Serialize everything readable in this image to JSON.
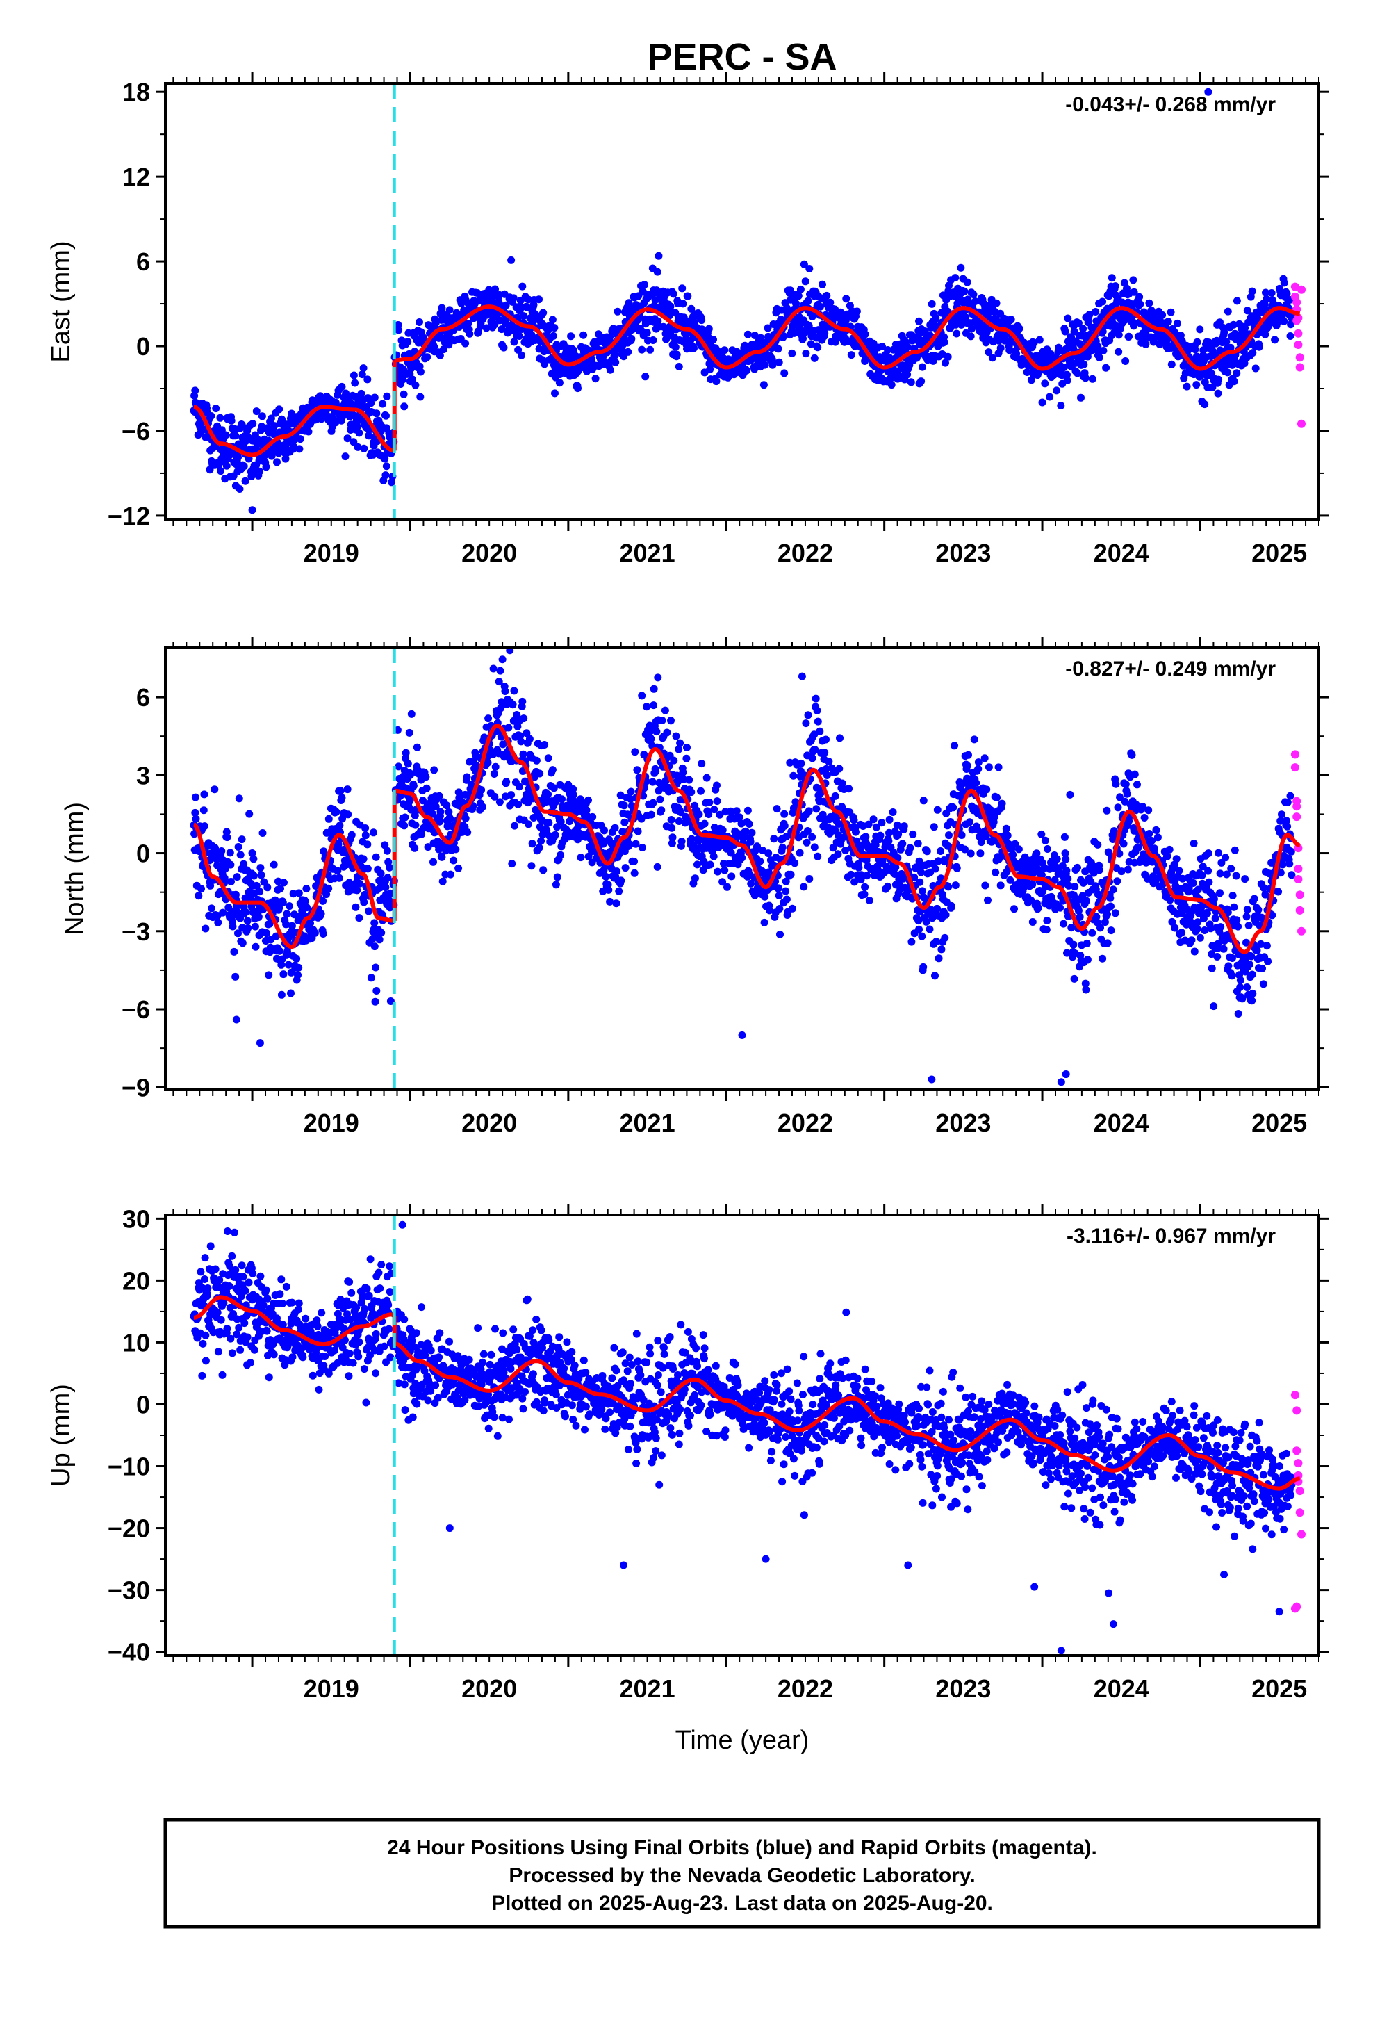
{
  "title": "PERC - SA",
  "xlabel": "Time (year)",
  "footer": {
    "line1": "24 Hour Positions Using Final Orbits (blue) and Rapid Orbits (magenta).",
    "line2": "Processed by the Nevada Geodetic Laboratory.",
    "line3": "Plotted on 2025-Aug-23. Last data on 2025-Aug-20."
  },
  "colors": {
    "final_orbits": "#0000ff",
    "rapid_orbits": "#ff22ff",
    "model_fit": "#ff0000",
    "offset_line": "#22e0e8"
  },
  "chart_data": [
    {
      "type": "scatter",
      "component": "east",
      "ylabel": "East (mm)",
      "rate_label": "-0.043+/- 0.268 mm/yr",
      "xlim": [
        2018.45,
        2025.75
      ],
      "ylim": [
        -12.3,
        18.6
      ],
      "yticks": [
        18,
        12,
        6,
        0,
        -6,
        -12
      ],
      "ytick_labels": [
        "18",
        "12",
        "6",
        "0",
        "−6",
        "−12"
      ],
      "xticks": [
        2019,
        2020,
        2021,
        2022,
        2023,
        2024,
        2025
      ],
      "offset_epoch": 2019.9,
      "model": {
        "offset": -1.3,
        "jump": 5.8,
        "rate": -0.043,
        "annual_amplitude": 2.1,
        "annual_phase_peak": 0.52,
        "step_pre_start": 2018.63,
        "breakpoints": [
          [
            2018.63,
            -4.3
          ],
          [
            2018.8,
            -6.9
          ],
          [
            2019.0,
            -7.7
          ],
          [
            2019.2,
            -6.4
          ],
          [
            2019.45,
            -4.3
          ],
          [
            2019.65,
            -4.5
          ],
          [
            2019.9,
            -7.4
          ]
        ],
        "post_points": [
          [
            2019.9,
            -1.0
          ],
          [
            2020.0,
            -0.9
          ],
          [
            2020.2,
            1.2
          ],
          [
            2020.5,
            2.8
          ],
          [
            2020.75,
            1.4
          ],
          [
            2021.0,
            -1.3
          ],
          [
            2021.2,
            -0.4
          ],
          [
            2021.5,
            2.6
          ],
          [
            2021.75,
            1.2
          ],
          [
            2022.0,
            -1.5
          ],
          [
            2022.2,
            -0.4
          ],
          [
            2022.5,
            2.7
          ],
          [
            2022.75,
            1.2
          ],
          [
            2023.0,
            -1.5
          ],
          [
            2023.2,
            -0.4
          ],
          [
            2023.5,
            2.7
          ],
          [
            2023.75,
            1.2
          ],
          [
            2024.0,
            -1.6
          ],
          [
            2024.2,
            -0.5
          ],
          [
            2024.5,
            2.7
          ],
          [
            2024.75,
            1.2
          ],
          [
            2025.0,
            -1.6
          ],
          [
            2025.2,
            -0.4
          ],
          [
            2025.5,
            2.7
          ],
          [
            2025.63,
            2.3
          ]
        ],
        "scatter_sd": 1.3
      },
      "rapid_points": [
        [
          2025.6,
          4.2
        ],
        [
          2025.6,
          3.5
        ],
        [
          2025.61,
          2.6
        ],
        [
          2025.61,
          1.8
        ],
        [
          2025.62,
          0.9
        ],
        [
          2025.62,
          0.1
        ],
        [
          2025.63,
          -0.8
        ],
        [
          2025.63,
          -1.5
        ],
        [
          2025.64,
          4.0
        ],
        [
          2025.64,
          -5.5
        ],
        [
          2025.61,
          3.1
        ],
        [
          2025.62,
          2.0
        ]
      ],
      "outliers": [
        [
          2025.05,
          18.0
        ],
        [
          2019.0,
          -11.6
        ],
        [
          2019.85,
          -8.5
        ]
      ]
    },
    {
      "type": "scatter",
      "component": "north",
      "ylabel": "North (mm)",
      "rate_label": "-0.827+/- 0.249 mm/yr",
      "xlim": [
        2018.45,
        2025.75
      ],
      "ylim": [
        -9.1,
        7.9
      ],
      "yticks": [
        6,
        3,
        0,
        -3,
        -6,
        -9
      ],
      "ytick_labels": [
        "6",
        "3",
        "0",
        "−3",
        "−6",
        "−9"
      ],
      "xticks": [
        2019,
        2020,
        2021,
        2022,
        2023,
        2024,
        2025
      ],
      "offset_epoch": 2019.9,
      "model": {
        "breakpoints": [
          [
            2018.63,
            1.1
          ],
          [
            2018.75,
            -0.9
          ],
          [
            2018.9,
            -1.9
          ],
          [
            2019.05,
            -1.9
          ],
          [
            2019.25,
            -3.6
          ],
          [
            2019.35,
            -2.5
          ],
          [
            2019.55,
            0.7
          ],
          [
            2019.7,
            -0.8
          ],
          [
            2019.8,
            -2.5
          ],
          [
            2019.9,
            -2.6
          ]
        ],
        "post_points": [
          [
            2019.9,
            2.4
          ],
          [
            2020.0,
            2.3
          ],
          [
            2020.1,
            1.4
          ],
          [
            2020.25,
            0.4
          ],
          [
            2020.35,
            1.8
          ],
          [
            2020.55,
            4.9
          ],
          [
            2020.7,
            3.5
          ],
          [
            2020.85,
            1.6
          ],
          [
            2021.0,
            1.5
          ],
          [
            2021.1,
            1.2
          ],
          [
            2021.25,
            -0.4
          ],
          [
            2021.35,
            0.6
          ],
          [
            2021.55,
            4.0
          ],
          [
            2021.7,
            2.4
          ],
          [
            2021.85,
            0.7
          ],
          [
            2022.0,
            0.6
          ],
          [
            2022.1,
            0.3
          ],
          [
            2022.25,
            -1.3
          ],
          [
            2022.35,
            -0.4
          ],
          [
            2022.55,
            3.2
          ],
          [
            2022.7,
            1.6
          ],
          [
            2022.85,
            -0.1
          ],
          [
            2023.0,
            -0.1
          ],
          [
            2023.1,
            -0.4
          ],
          [
            2023.25,
            -2.1
          ],
          [
            2023.35,
            -1.3
          ],
          [
            2023.55,
            2.4
          ],
          [
            2023.7,
            0.7
          ],
          [
            2023.85,
            -0.9
          ],
          [
            2024.0,
            -1.0
          ],
          [
            2024.1,
            -1.3
          ],
          [
            2024.25,
            -2.9
          ],
          [
            2024.35,
            -2.1
          ],
          [
            2024.55,
            1.6
          ],
          [
            2024.7,
            -0.1
          ],
          [
            2024.85,
            -1.7
          ],
          [
            2025.0,
            -1.8
          ],
          [
            2025.1,
            -2.1
          ],
          [
            2025.28,
            -3.8
          ],
          [
            2025.38,
            -3.0
          ],
          [
            2025.55,
            0.7
          ],
          [
            2025.63,
            0.3
          ]
        ],
        "scatter_sd": 1.35
      },
      "rapid_points": [
        [
          2025.6,
          3.8
        ],
        [
          2025.6,
          3.3
        ],
        [
          2025.61,
          2.0
        ],
        [
          2025.61,
          1.4
        ],
        [
          2025.62,
          0.2
        ],
        [
          2025.62,
          -0.6
        ],
        [
          2025.63,
          -1.6
        ],
        [
          2025.63,
          -2.2
        ],
        [
          2025.64,
          -3.0
        ],
        [
          2025.61,
          1.8
        ],
        [
          2025.62,
          -1.0
        ]
      ],
      "outliers": [
        [
          2020.63,
          7.8
        ],
        [
          2022.48,
          6.8
        ],
        [
          2023.3,
          -8.7
        ],
        [
          2024.15,
          -8.5
        ],
        [
          2024.12,
          -8.8
        ],
        [
          2022.1,
          -7.0
        ],
        [
          2018.9,
          -6.4
        ],
        [
          2019.05,
          -7.3
        ]
      ]
    },
    {
      "type": "scatter",
      "component": "up",
      "ylabel": "Up (mm)",
      "rate_label": "-3.116+/- 0.967 mm/yr",
      "xlim": [
        2018.45,
        2025.75
      ],
      "ylim": [
        -40.6,
        30.6
      ],
      "yticks": [
        30,
        20,
        10,
        0,
        -10,
        -20,
        -30,
        -40
      ],
      "ytick_labels": [
        "30",
        "20",
        "10",
        "0",
        "−10",
        "−20",
        "−30",
        "−40"
      ],
      "xticks": [
        2019,
        2020,
        2021,
        2022,
        2023,
        2024,
        2025
      ],
      "offset_epoch": 2019.9,
      "model": {
        "breakpoints": [
          [
            2018.63,
            14.0
          ],
          [
            2018.8,
            17.3
          ],
          [
            2019.0,
            15.1
          ],
          [
            2019.2,
            12.0
          ],
          [
            2019.45,
            9.7
          ],
          [
            2019.7,
            12.6
          ],
          [
            2019.88,
            14.5
          ],
          [
            2019.9,
            14.3
          ]
        ],
        "post_points": [
          [
            2019.9,
            9.8
          ],
          [
            2020.05,
            7.0
          ],
          [
            2020.25,
            4.4
          ],
          [
            2020.5,
            2.2
          ],
          [
            2020.8,
            7.0
          ],
          [
            2021.0,
            3.5
          ],
          [
            2021.2,
            1.6
          ],
          [
            2021.5,
            -1.0
          ],
          [
            2021.8,
            4.0
          ],
          [
            2022.0,
            0.6
          ],
          [
            2022.2,
            -1.5
          ],
          [
            2022.45,
            -4.2
          ],
          [
            2022.8,
            1.0
          ],
          [
            2023.0,
            -2.8
          ],
          [
            2023.2,
            -4.8
          ],
          [
            2023.45,
            -7.4
          ],
          [
            2023.8,
            -2.5
          ],
          [
            2024.0,
            -5.8
          ],
          [
            2024.2,
            -8.2
          ],
          [
            2024.45,
            -10.7
          ],
          [
            2024.8,
            -5.0
          ],
          [
            2025.0,
            -8.4
          ],
          [
            2025.2,
            -11.0
          ],
          [
            2025.5,
            -13.6
          ],
          [
            2025.63,
            -12.0
          ]
        ],
        "scatter_sd": 4.6
      },
      "rapid_points": [
        [
          2025.6,
          1.5
        ],
        [
          2025.61,
          -1.0
        ],
        [
          2025.61,
          -7.5
        ],
        [
          2025.62,
          -9.5
        ],
        [
          2025.62,
          -11.5
        ],
        [
          2025.63,
          -14.0
        ],
        [
          2025.63,
          -17.5
        ],
        [
          2025.64,
          -21.0
        ],
        [
          2025.6,
          -33.0
        ],
        [
          2025.61,
          -32.7
        ],
        [
          2025.62,
          -12.5
        ]
      ],
      "outliers": [
        [
          2019.95,
          29.0
        ],
        [
          2020.25,
          -20.0
        ],
        [
          2021.35,
          -26.0
        ],
        [
          2022.25,
          -25.0
        ],
        [
          2023.15,
          -26.0
        ],
        [
          2023.95,
          -29.5
        ],
        [
          2024.12,
          -39.8
        ],
        [
          2024.42,
          -30.5
        ],
        [
          2024.45,
          -35.5
        ],
        [
          2025.15,
          -27.5
        ],
        [
          2025.5,
          -33.5
        ]
      ]
    }
  ]
}
